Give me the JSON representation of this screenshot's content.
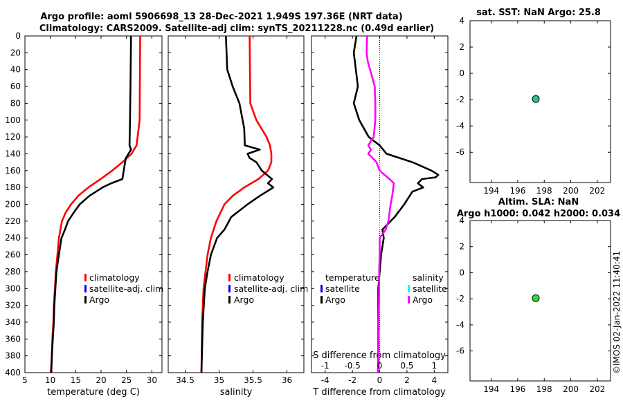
{
  "header": {
    "line1": "Argo profile: aoml 5906698_13 28-Dec-2021 1.949S 197.36E (NRT data)",
    "line2": "Climatology: CARS2009. Satellite-adj clim: synTS_20211228.nc (0.49d earlier)"
  },
  "colors": {
    "climatology": "#ff0000",
    "satellite": "#0000ff",
    "argo": "#000000",
    "sal_argo": "#ff00ff",
    "sal_sat": "#00ffff",
    "point_top": "#2fbf8f",
    "point_bottom": "#33dd33"
  },
  "chart_data": [
    {
      "type": "line",
      "name": "temperature",
      "xlabel": "temperature (deg C)",
      "xlim": [
        5,
        32
      ],
      "xticks": [
        5,
        10,
        15,
        20,
        25,
        30
      ],
      "ylim": [
        400,
        0
      ],
      "yticks": [
        0,
        20,
        40,
        60,
        80,
        100,
        120,
        140,
        160,
        180,
        200,
        220,
        240,
        260,
        280,
        300,
        320,
        340,
        360,
        380,
        400
      ],
      "legend": [
        "climatology",
        "satellite-adj. clim",
        "Argo"
      ],
      "series": [
        {
          "name": "climatology",
          "color": "#ff0000",
          "depth": [
            0,
            100,
            130,
            140,
            150,
            160,
            170,
            180,
            190,
            200,
            210,
            220,
            240,
            260,
            280,
            300,
            320,
            340,
            360,
            380,
            400
          ],
          "values": [
            27.7,
            27.6,
            27.0,
            26.0,
            24.2,
            22.2,
            19.9,
            17.5,
            15.5,
            14.1,
            13.0,
            12.3,
            11.7,
            11.4,
            11.1,
            10.9,
            10.7,
            10.6,
            10.4,
            10.3,
            10.1
          ]
        },
        {
          "name": "Argo",
          "color": "#000000",
          "depth": [
            0,
            60,
            100,
            130,
            135,
            145,
            155,
            170,
            175,
            180,
            190,
            200,
            210,
            220,
            230,
            240,
            260,
            280,
            300,
            320,
            340,
            360,
            380,
            400
          ],
          "values": [
            25.9,
            25.8,
            25.7,
            25.6,
            25.9,
            24.9,
            24.6,
            24.2,
            22.0,
            20.3,
            17.7,
            15.8,
            14.6,
            13.5,
            12.9,
            12.2,
            11.7,
            11.2,
            11.0,
            10.8,
            10.7,
            10.5,
            10.3,
            10.2
          ]
        }
      ]
    },
    {
      "type": "line",
      "name": "salinity",
      "xlabel": "salinity",
      "xlim": [
        34.25,
        36.25
      ],
      "xticks": [
        34.5,
        35,
        35.5,
        36
      ],
      "ylim": [
        400,
        0
      ],
      "legend": [
        "climatology",
        "satellite-adj. clim",
        "Argo"
      ],
      "series": [
        {
          "name": "climatology",
          "color": "#ff0000",
          "depth": [
            0,
            80,
            100,
            120,
            130,
            140,
            150,
            160,
            170,
            180,
            190,
            200,
            220,
            240,
            260,
            280,
            300,
            340,
            400
          ],
          "values": [
            35.45,
            35.46,
            35.55,
            35.7,
            35.75,
            35.77,
            35.77,
            35.72,
            35.58,
            35.37,
            35.2,
            35.08,
            34.96,
            34.88,
            34.83,
            34.8,
            34.77,
            34.75,
            34.74
          ]
        },
        {
          "name": "Argo",
          "color": "#000000",
          "depth": [
            0,
            40,
            60,
            80,
            110,
            130,
            135,
            140,
            145,
            150,
            160,
            170,
            175,
            180,
            190,
            200,
            215,
            230,
            240,
            260,
            280,
            300,
            340,
            400
          ],
          "values": [
            35.1,
            35.12,
            35.2,
            35.3,
            35.37,
            35.38,
            35.6,
            35.42,
            35.45,
            35.55,
            35.63,
            35.78,
            35.72,
            35.8,
            35.6,
            35.42,
            35.18,
            35.08,
            34.97,
            34.88,
            34.83,
            34.79,
            34.76,
            34.74
          ]
        }
      ]
    },
    {
      "type": "line",
      "name": "difference from climatology",
      "xlabel": "T difference from climatology",
      "xlabel_top": "S difference from climatology",
      "xlim": [
        -5,
        5
      ],
      "xticks": [
        -4,
        -2,
        0,
        2,
        4
      ],
      "xticks_top": [
        -1,
        -0.5,
        0,
        0.5,
        1
      ],
      "ylim": [
        400,
        0
      ],
      "legend_left_title": "temperature",
      "legend_left": [
        "satellite",
        "Argo"
      ],
      "legend_right_title": "salinity",
      "legend_right": [
        "satellite",
        "Argo"
      ],
      "series": [
        {
          "name": "temperature Argo",
          "color": "#000000",
          "depth": [
            0,
            20,
            60,
            80,
            100,
            120,
            130,
            140,
            150,
            160,
            165,
            168,
            170,
            175,
            180,
            185,
            190,
            200,
            215,
            230,
            240,
            260,
            280,
            300,
            340,
            400
          ],
          "values": [
            -1.7,
            -1.9,
            -1.6,
            -1.9,
            -1.5,
            -0.8,
            0.0,
            0.5,
            2.4,
            3.8,
            4.3,
            4.1,
            3.1,
            2.8,
            3.2,
            2.4,
            2.2,
            1.8,
            1.1,
            0.2,
            0.3,
            0.1,
            0.0,
            -0.1,
            -0.1,
            -0.1
          ]
        },
        {
          "name": "salinity Argo",
          "color": "#ff00ff",
          "depth": [
            0,
            20,
            30,
            60,
            80,
            100,
            120,
            130,
            135,
            140,
            145,
            150,
            160,
            170,
            175,
            180,
            190,
            200,
            210,
            220,
            230,
            240,
            260,
            280,
            300,
            340,
            400
          ],
          "values": [
            -0.23,
            -0.24,
            -0.22,
            -0.09,
            -0.08,
            -0.08,
            -0.11,
            -0.21,
            -0.16,
            -0.21,
            -0.13,
            -0.06,
            0.0,
            0.18,
            0.26,
            0.25,
            0.23,
            0.2,
            0.18,
            0.16,
            0.11,
            0.0,
            0.0,
            -0.01,
            -0.01,
            -0.02,
            -0.02
          ]
        }
      ]
    },
    {
      "type": "scatter",
      "name": "SST",
      "title": "sat. SST: NaN Argo: 25.8",
      "xlim": [
        192.4,
        203
      ],
      "xticks": [
        194,
        196,
        198,
        200,
        202
      ],
      "ylim": [
        -8.3,
        4
      ],
      "yticks": [
        4,
        2,
        0,
        -2,
        -4,
        -6
      ],
      "points": [
        {
          "x": 197.36,
          "y": -1.949
        }
      ]
    },
    {
      "type": "scatter",
      "name": "Altimetry",
      "title1": "Altim. SLA: NaN",
      "title2": "Argo h1000: 0.042 h2000: 0.034",
      "xlim": [
        192.4,
        203
      ],
      "xticks": [
        194,
        196,
        198,
        200,
        202
      ],
      "ylim": [
        -8.3,
        4
      ],
      "yticks": [
        4,
        2,
        0,
        -2,
        -4,
        -6
      ],
      "points": [
        {
          "x": 197.36,
          "y": -1.949
        }
      ]
    }
  ],
  "watermark": "©IMOS 02-Jan-2022 11:40:41"
}
